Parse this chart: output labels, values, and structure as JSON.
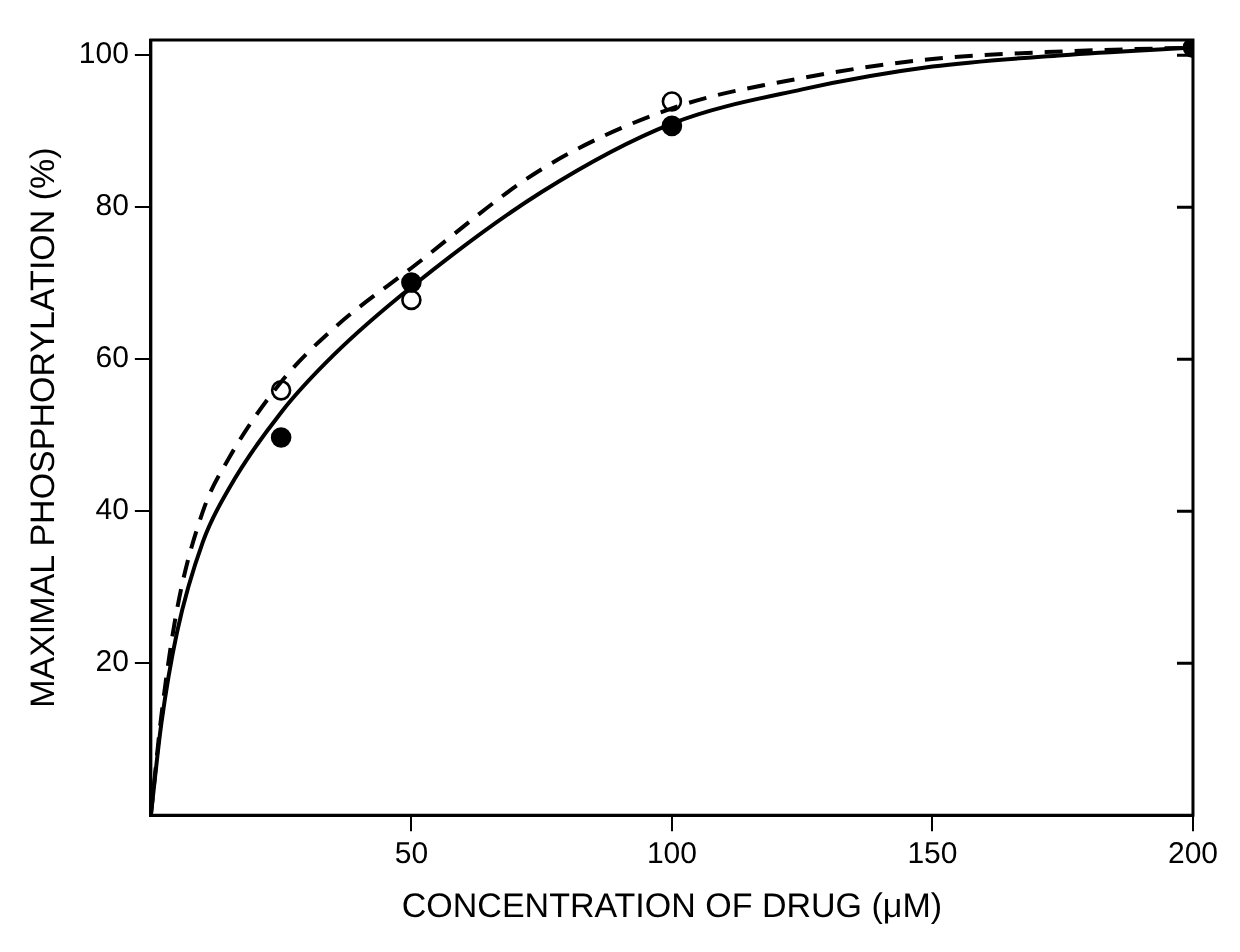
{
  "chart_data": {
    "type": "scatter",
    "xlabel": "CONCENTRATION OF DRUG (μM)",
    "ylabel": "MAXIMAL PHOSPHORYLATION (%)",
    "xlim": [
      0,
      200
    ],
    "xticks": [
      50,
      100,
      150,
      200
    ],
    "ylim": [
      0,
      102
    ],
    "yticks": [
      20,
      40,
      60,
      80,
      100
    ],
    "grid": false,
    "legend": false,
    "series": [
      {
        "type": "line",
        "color": "#000000",
        "line_style": "solid",
        "marker": "none",
        "x": [
          0,
          2,
          5,
          10,
          15,
          25,
          35,
          50,
          75,
          100,
          125,
          150,
          175,
          200
        ],
        "values": [
          0,
          12,
          24,
          36,
          43,
          53,
          60.5,
          69.5,
          82,
          91,
          95.5,
          98.5,
          100,
          101
        ]
      },
      {
        "type": "line",
        "color": "#000000",
        "line_style": "dashed",
        "marker": "none",
        "x": [
          0,
          2,
          5,
          10,
          15,
          25,
          35,
          50,
          75,
          100,
          125,
          150,
          175,
          200
        ],
        "values": [
          0,
          13,
          27,
          40,
          47,
          57,
          64,
          72,
          85,
          93,
          97,
          99.5,
          100.5,
          101
        ]
      },
      {
        "color": "#000000",
        "marker": "circle",
        "x": [
          25,
          50,
          100,
          200
        ],
        "values": [
          49.7,
          70.1,
          90.7,
          101
        ]
      },
      {
        "color": "#ffffff",
        "marker": "circle",
        "x": [
          25,
          50,
          100
        ],
        "values": [
          55.9,
          67.8,
          93.9
        ]
      }
    ]
  }
}
